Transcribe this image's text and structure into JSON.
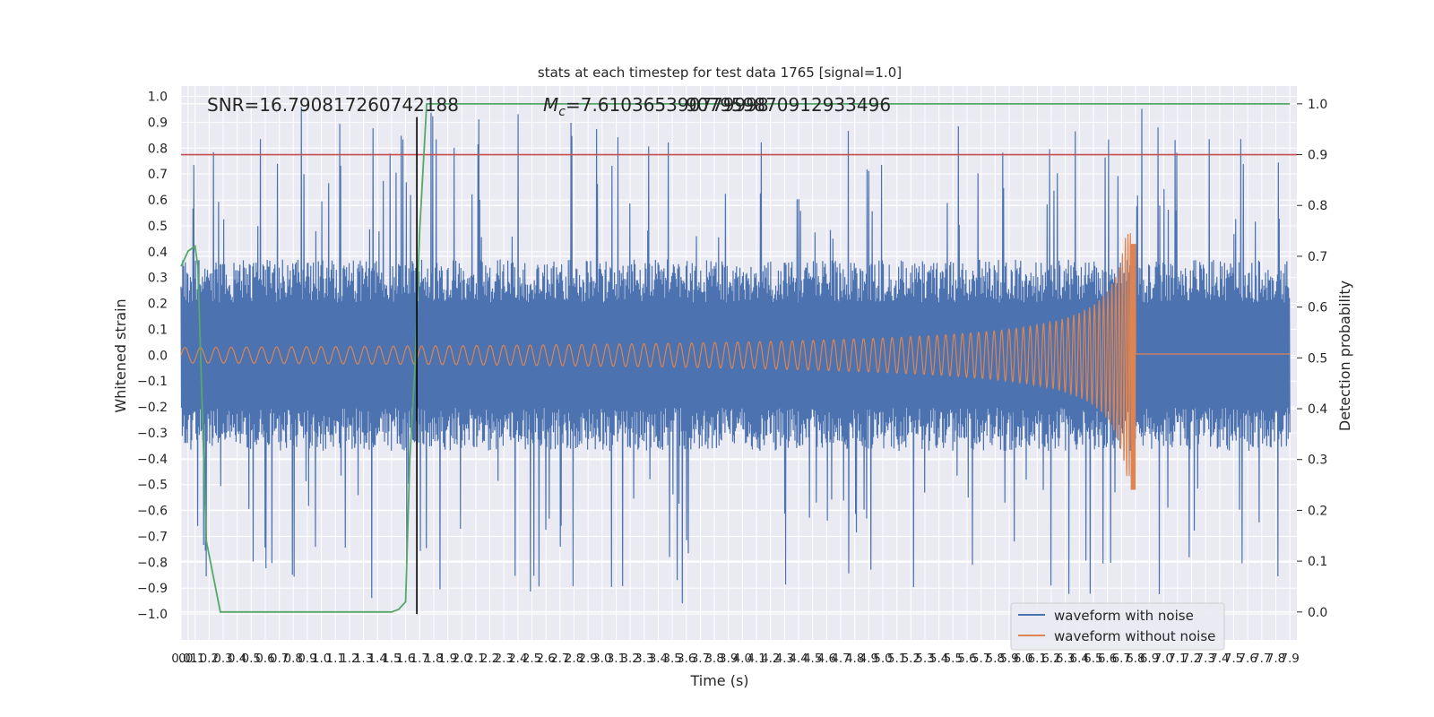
{
  "chart_data": {
    "type": "line",
    "title": "stats at each timestep for test data 1765 [signal=1.0]",
    "xlabel": "Time (s)",
    "ylabel": "Whitened strain",
    "y2label": "Detection probability",
    "xlim": [
      0.0,
      7.95
    ],
    "ylim": [
      -1.1,
      1.04
    ],
    "y2lim": [
      -0.055,
      1.035
    ],
    "x_ticks": [
      "0.0",
      "0.1",
      "0.1",
      "0.2",
      "0.3",
      "0.4",
      "0.5",
      "0.6",
      "0.7",
      "0.8",
      "0.9",
      "1.0",
      "1.1",
      "1.2",
      "1.3",
      "1.4",
      "1.5",
      "1.6",
      "1.7",
      "1.8",
      "1.9",
      "2.0",
      "2.1",
      "2.2",
      "2.3",
      "2.4",
      "2.5",
      "2.6",
      "2.7",
      "2.8",
      "2.9",
      "3.0",
      "3.1",
      "3.2",
      "3.3",
      "3.4",
      "3.5",
      "3.6",
      "3.7",
      "3.8",
      "3.9",
      "4.0",
      "4.1",
      "4.2",
      "4.3",
      "4.4",
      "4.5",
      "4.6",
      "4.7",
      "4.8",
      "4.9",
      "5.0",
      "5.1",
      "5.2",
      "5.3",
      "5.4",
      "5.5",
      "5.6",
      "5.7",
      "5.8",
      "5.9",
      "6.0",
      "6.1",
      "6.2",
      "6.3",
      "6.4",
      "6.5",
      "6.6",
      "6.7",
      "6.8",
      "6.9",
      "7.0",
      "7.1",
      "7.2",
      "7.3",
      "7.4",
      "7.5",
      "7.6",
      "7.7",
      "7.8",
      "7.9"
    ],
    "y_ticks": [
      "1.0",
      "0.9",
      "0.8",
      "0.7",
      "0.6",
      "0.5",
      "0.4",
      "0.3",
      "0.2",
      "0.1",
      "0.0",
      "−0.1",
      "−0.2",
      "−0.3",
      "−0.4",
      "−0.5",
      "−0.6",
      "−0.7",
      "−0.8",
      "−0.9",
      "−1.0"
    ],
    "y2_ticks": [
      "1.0",
      "0.9",
      "0.8",
      "0.7",
      "0.6",
      "0.5",
      "0.4",
      "0.3",
      "0.2",
      "0.1",
      "0.0"
    ],
    "annotations": {
      "snr": "SNR=16.790817260742188",
      "mc_symbol": "M",
      "mc_sub": "c",
      "mc_value": "=7.610365390779998",
      "mc_overlap": "907959870912933496"
    },
    "series": [
      {
        "name": "waveform with noise",
        "color": "#4c72b0",
        "axis": "left",
        "noise_amplitude": 0.37,
        "peak_min": -1.0,
        "peak_max": 0.96
      },
      {
        "name": "waveform without noise",
        "color": "#dd8452",
        "axis": "left",
        "merger_time": 6.8,
        "merger_amplitude_max": 0.43,
        "merger_amplitude_min": -0.52,
        "start_amplitude": 0.03
      },
      {
        "name": "detection probability",
        "color": "#55a868",
        "axis": "right",
        "x": [
          0.0,
          0.05,
          0.1,
          0.12,
          0.18,
          0.28,
          0.5,
          1.0,
          1.5,
          1.55,
          1.6,
          1.63,
          1.67,
          1.7,
          1.75,
          1.8,
          7.9
        ],
        "y": [
          0.68,
          0.71,
          0.72,
          0.68,
          0.14,
          0.0,
          0.0,
          0.0,
          0.0,
          0.005,
          0.02,
          0.3,
          0.5,
          0.75,
          1.0,
          1.0,
          1.0
        ]
      }
    ],
    "threshold": {
      "value": 0.9,
      "axis": "right",
      "color": "#c44e52"
    },
    "vertical_marker": {
      "x": 1.68,
      "color": "#000000"
    },
    "legend": {
      "position": "lower-right",
      "entries": [
        "waveform with noise",
        "waveform without noise"
      ]
    }
  }
}
